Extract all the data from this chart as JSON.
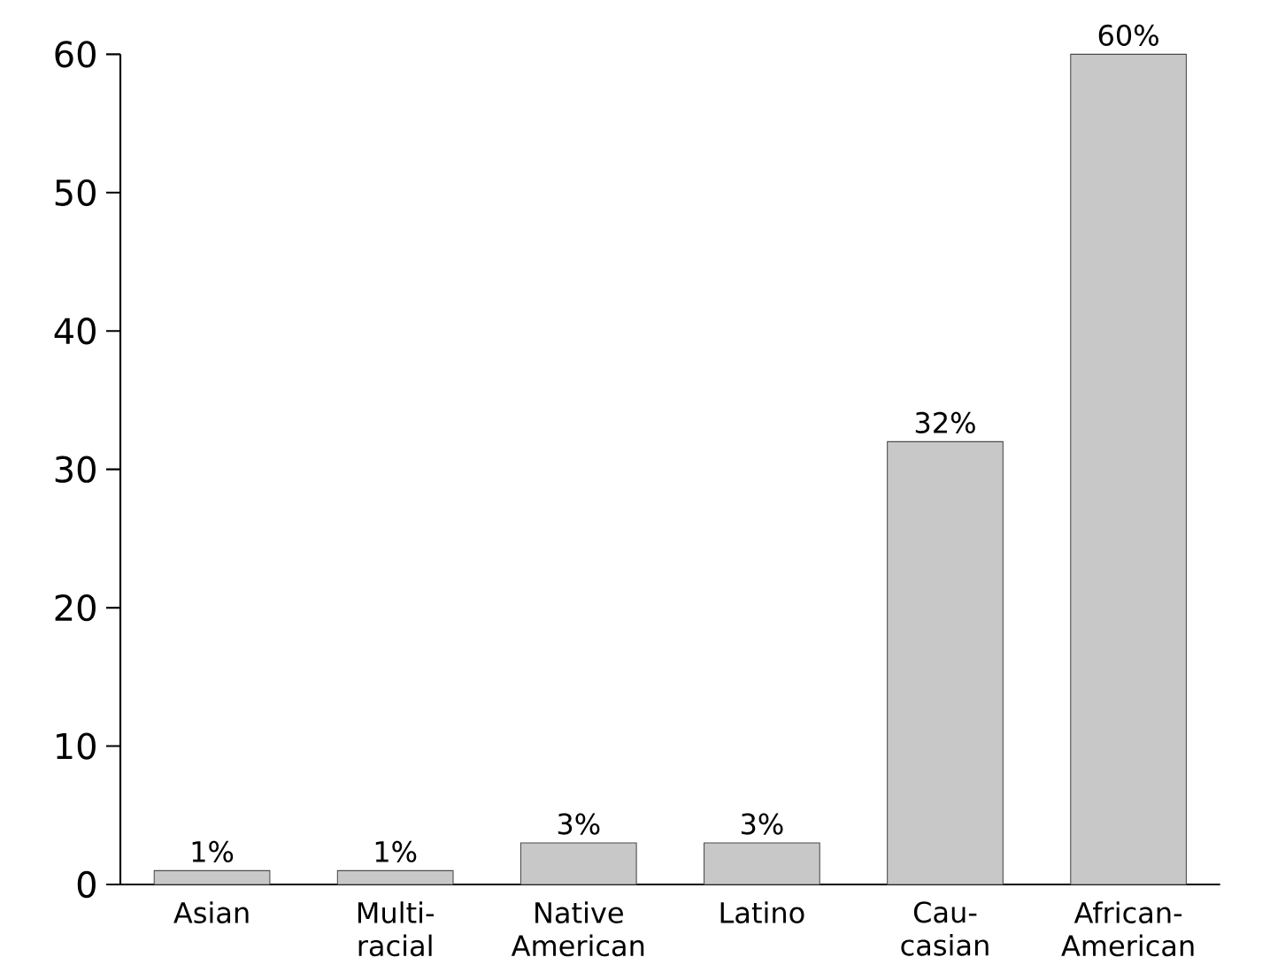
{
  "chart_data": {
    "type": "bar",
    "categories": [
      "Asian",
      "Multi-racial",
      "Native American",
      "Latino",
      "Cau-casian",
      "African-American"
    ],
    "values": [
      1,
      1,
      3,
      3,
      32,
      60
    ],
    "value_labels": [
      "1%",
      "1%",
      "3%",
      "3%",
      "32%",
      "60%"
    ],
    "color": "#c8c8c8",
    "ylim": [
      0,
      60
    ],
    "yticks": [
      0,
      10,
      20,
      30,
      40,
      50,
      60
    ],
    "grid": false
  }
}
